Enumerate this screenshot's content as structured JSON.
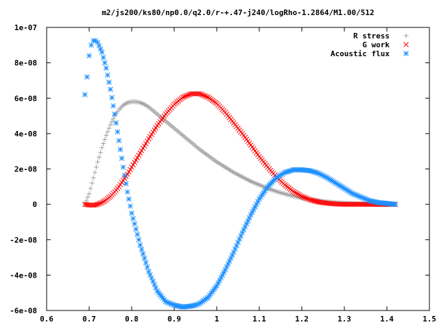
{
  "chart_data": {
    "type": "scatter",
    "title": "m2/js200/ks80/np0.0/q2.0/r-+.47-j240/logRho-1.2864/M1.00/512",
    "xlabel": "",
    "ylabel": "",
    "xlim": [
      0.6,
      1.5
    ],
    "ylim": [
      -6e-08,
      1e-07
    ],
    "x_ticks": [
      0.6,
      0.7,
      0.8,
      0.9,
      1.0,
      1.1,
      1.2,
      1.3,
      1.4,
      1.5
    ],
    "x_tick_labels": [
      "0.6",
      "0.7",
      "0.8",
      "0.9",
      "1",
      "1.1",
      "1.2",
      "1.3",
      "1.4",
      "1.5"
    ],
    "y_ticks": [
      -6e-08,
      -4e-08,
      -2e-08,
      0,
      2e-08,
      4e-08,
      6e-08,
      8e-08,
      1e-07
    ],
    "y_tick_labels": [
      "-6e-08",
      "-4e-08",
      "-2e-08",
      "0",
      "2e-08",
      "4e-08",
      "6e-08",
      "8e-08",
      "1e-07"
    ],
    "grid": false,
    "legend_position": "top-right",
    "series": [
      {
        "name": "R stress",
        "marker": "plus",
        "color": "#a0a0a0",
        "x": [
          0.69,
          0.7,
          0.71,
          0.72,
          0.73,
          0.74,
          0.75,
          0.76,
          0.77,
          0.78,
          0.79,
          0.8,
          0.81,
          0.82,
          0.83,
          0.84,
          0.85,
          0.86,
          0.87,
          0.88,
          0.9,
          0.92,
          0.94,
          0.96,
          0.98,
          1.0,
          1.02,
          1.04,
          1.06,
          1.08,
          1.1,
          1.12,
          1.14,
          1.16,
          1.18,
          1.2,
          1.22,
          1.24,
          1.26,
          1.28,
          1.3,
          1.32,
          1.34,
          1.36,
          1.38,
          1.4,
          1.42
        ],
        "y": [
          0.0,
          6e-09,
          1.5e-08,
          2.4e-08,
          3.2e-08,
          3.9e-08,
          4.5e-08,
          5e-08,
          5.35e-08,
          5.6e-08,
          5.75e-08,
          5.8e-08,
          5.8e-08,
          5.75e-08,
          5.65e-08,
          5.5e-08,
          5.3e-08,
          5.1e-08,
          4.9e-08,
          4.7e-08,
          4.3e-08,
          3.9e-08,
          3.5e-08,
          3.1e-08,
          2.75e-08,
          2.4e-08,
          2.1e-08,
          1.8e-08,
          1.55e-08,
          1.3e-08,
          1.1e-08,
          9e-09,
          7.3e-09,
          5.9e-09,
          4.6e-09,
          3.6e-09,
          2.7e-09,
          2e-09,
          1.4e-09,
          1e-09,
          7e-10,
          4e-10,
          2e-10,
          1e-10,
          0.0,
          0.0,
          0.0
        ]
      },
      {
        "name": "G work",
        "marker": "cross",
        "color": "#ff0000",
        "x": [
          0.69,
          0.7,
          0.71,
          0.72,
          0.73,
          0.74,
          0.75,
          0.76,
          0.77,
          0.78,
          0.79,
          0.8,
          0.82,
          0.84,
          0.86,
          0.88,
          0.9,
          0.92,
          0.94,
          0.96,
          0.98,
          1.0,
          1.02,
          1.04,
          1.06,
          1.08,
          1.1,
          1.12,
          1.14,
          1.16,
          1.18,
          1.2,
          1.22,
          1.24,
          1.26,
          1.28,
          1.3,
          1.32,
          1.34,
          1.36,
          1.38,
          1.4,
          1.42
        ],
        "y": [
          0.0,
          -4e-10,
          -5e-10,
          0.0,
          1e-09,
          2.5e-09,
          4.5e-09,
          7e-09,
          1e-08,
          1.35e-08,
          1.7e-08,
          2.1e-08,
          2.9e-08,
          3.7e-08,
          4.45e-08,
          5.1e-08,
          5.65e-08,
          6.05e-08,
          6.25e-08,
          6.25e-08,
          6.05e-08,
          5.7e-08,
          5.2e-08,
          4.6e-08,
          4e-08,
          3.35e-08,
          2.7e-08,
          2.1e-08,
          1.55e-08,
          1.1e-08,
          7.3e-09,
          4.5e-09,
          2.5e-09,
          1.3e-09,
          6e-10,
          2e-10,
          0.0,
          0.0,
          0.0,
          0.0,
          0.0,
          0.0,
          0.0
        ]
      },
      {
        "name": "Acoustic flux",
        "marker": "star",
        "color": "#1e90ff",
        "x": [
          0.69,
          0.695,
          0.7,
          0.705,
          0.71,
          0.715,
          0.72,
          0.73,
          0.74,
          0.75,
          0.76,
          0.77,
          0.78,
          0.79,
          0.8,
          0.82,
          0.84,
          0.86,
          0.88,
          0.9,
          0.92,
          0.94,
          0.95,
          0.96,
          0.98,
          1.0,
          1.02,
          1.04,
          1.06,
          1.08,
          1.1,
          1.12,
          1.14,
          1.16,
          1.18,
          1.2,
          1.22,
          1.24,
          1.26,
          1.28,
          1.3,
          1.32,
          1.34,
          1.36,
          1.38,
          1.4,
          1.42
        ],
        "y": [
          6.2e-08,
          7.2e-08,
          8.4e-08,
          9e-08,
          9.25e-08,
          9.25e-08,
          9.15e-08,
          8.6e-08,
          7.7e-08,
          6.5e-08,
          5.1e-08,
          3.6e-08,
          2.1e-08,
          7e-09,
          -5e-09,
          -2.3e-08,
          -3.8e-08,
          -4.9e-08,
          -5.5e-08,
          -5.7e-08,
          -5.8e-08,
          -5.75e-08,
          -5.7e-08,
          -5.6e-08,
          -5.25e-08,
          -4.6e-08,
          -3.7e-08,
          -2.7e-08,
          -1.6e-08,
          -6e-09,
          3e-09,
          1e-08,
          1.5e-08,
          1.8e-08,
          1.95e-08,
          1.95e-08,
          1.9e-08,
          1.75e-08,
          1.5e-08,
          1.2e-08,
          9e-09,
          6e-09,
          4e-09,
          2e-09,
          1e-09,
          5e-10,
          0.0
        ]
      }
    ]
  }
}
